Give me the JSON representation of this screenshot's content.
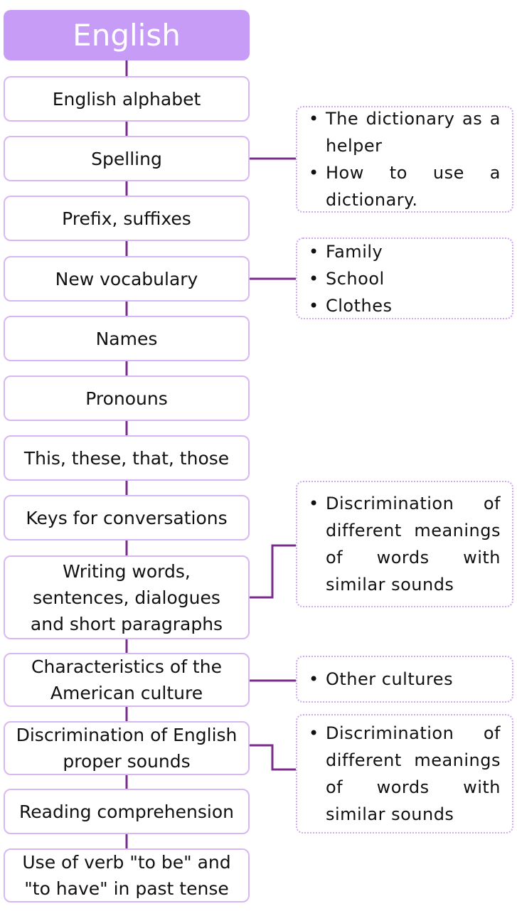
{
  "title": "English",
  "topics": [
    "English alphabet",
    "Spelling",
    "Prefix, suffixes",
    "New vocabulary",
    "Names",
    "Pronouns",
    "This, these, that, those",
    "Keys for conversations",
    "Writing words, sentences, dialogues and short paragraphs",
    "Characteristics of the American culture",
    "Discrimination of English proper sounds",
    "Reading comprehension",
    "Use of verb \"to be\" and \"to have\" in past tense"
  ],
  "notes": [
    {
      "topic": "Spelling",
      "items": [
        "The dictionary as a helper",
        "How to use a dictionary."
      ]
    },
    {
      "topic": "New vocabulary",
      "items": [
        "Family",
        "School",
        "Clothes"
      ]
    },
    {
      "topic": "Writing words, sentences, dialogues and short paragraphs",
      "items": [
        "Discrimination of different meanings of words with similar sounds"
      ]
    },
    {
      "topic": "Characteristics of the American culture",
      "items": [
        "Other cultures"
      ]
    },
    {
      "topic": "Discrimination of English proper sounds",
      "items": [
        "Discrimination of different meanings of words with similar sounds"
      ]
    }
  ],
  "colors": {
    "title_fill": "#c79cf6",
    "title_text": "#ffffff",
    "box_border": "#d7b7f4",
    "note_border": "#cfa9f2",
    "connector": "#7a2c8c"
  },
  "bullet_glyph": "•"
}
